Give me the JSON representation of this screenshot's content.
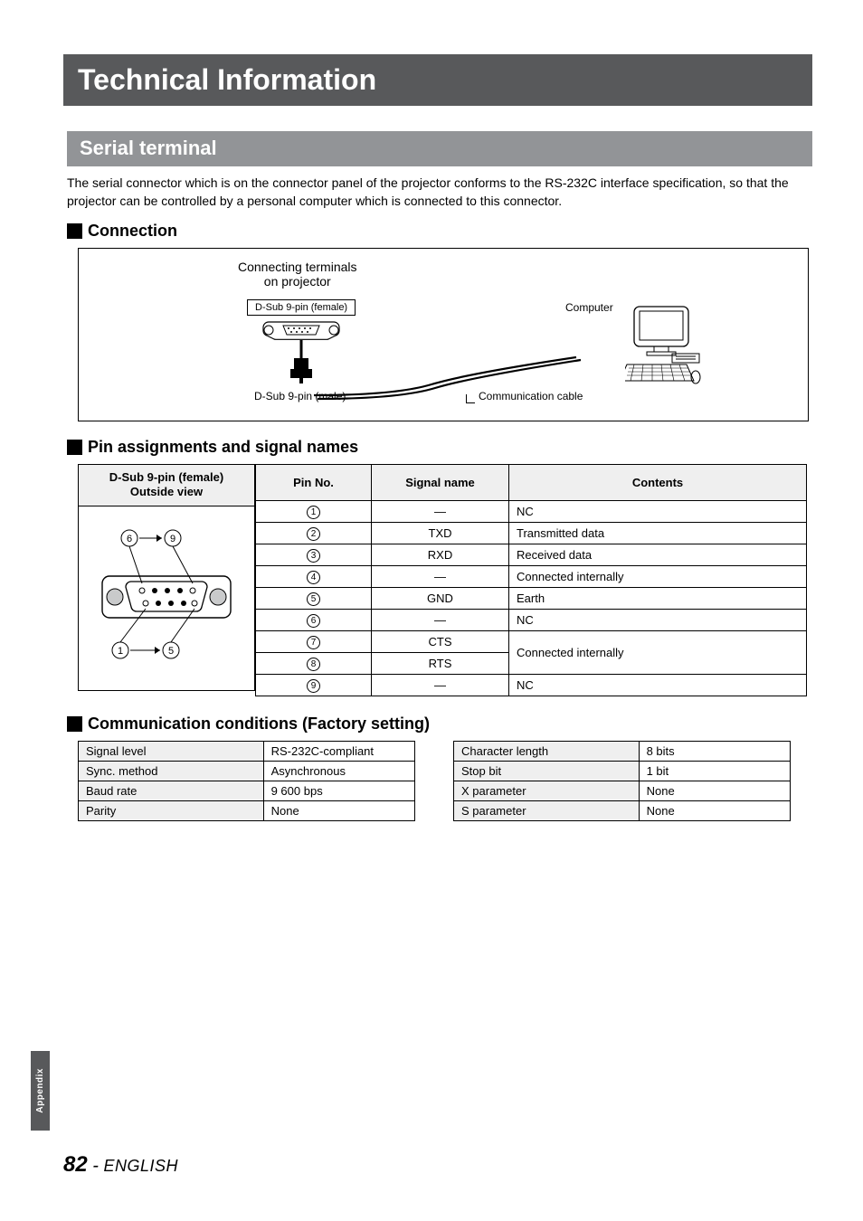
{
  "title": "Technical Information",
  "section": "Serial terminal",
  "intro": "The serial connector which is on the connector panel of the projector conforms to the RS-232C interface specification, so that the projector can be controlled by a personal computer which is connected to this connector.",
  "sub_connection": "Connection",
  "diagram": {
    "conn_terms_l1": "Connecting terminals",
    "conn_terms_l2": "on projector",
    "dsub_female": "D-Sub 9-pin (female)",
    "dsub_male": "D-Sub 9-pin (male)",
    "computer": "Computer",
    "comm_cable": "Communication cable"
  },
  "sub_pins": "Pin assignments and signal names",
  "pin_head_outside_l1": "D-Sub 9-pin (female)",
  "pin_head_outside_l2": "Outside view",
  "pin_head_pin": "Pin No.",
  "pin_head_signal": "Signal name",
  "pin_head_contents": "Contents",
  "pins": [
    {
      "n": "1",
      "sig": "—",
      "cnt": "NC"
    },
    {
      "n": "2",
      "sig": "TXD",
      "cnt": "Transmitted data"
    },
    {
      "n": "3",
      "sig": "RXD",
      "cnt": "Received data"
    },
    {
      "n": "4",
      "sig": "—",
      "cnt": "Connected internally"
    },
    {
      "n": "5",
      "sig": "GND",
      "cnt": "Earth"
    },
    {
      "n": "6",
      "sig": "—",
      "cnt": "NC"
    },
    {
      "n": "7",
      "sig": "CTS",
      "cnt": "Connected internally"
    },
    {
      "n": "8",
      "sig": "RTS",
      "cnt": ""
    },
    {
      "n": "9",
      "sig": "—",
      "cnt": "NC"
    }
  ],
  "sub_comm": "Communication conditions (Factory setting)",
  "comm_left": [
    {
      "k": "Signal level",
      "v": "RS-232C-compliant"
    },
    {
      "k": "Sync. method",
      "v": "Asynchronous"
    },
    {
      "k": "Baud rate",
      "v": "9 600 bps"
    },
    {
      "k": "Parity",
      "v": "None"
    }
  ],
  "comm_right": [
    {
      "k": "Character length",
      "v": "8 bits"
    },
    {
      "k": "Stop bit",
      "v": "1 bit"
    },
    {
      "k": "X parameter",
      "v": "None"
    },
    {
      "k": "S parameter",
      "v": "None"
    }
  ],
  "side_tab": "Appendix",
  "page_number": "82",
  "page_sep": " - ",
  "page_lang": "ENGLISH",
  "outside_arrow_69": {
    "a": "6",
    "b": "9"
  },
  "outside_arrow_15": {
    "a": "1",
    "b": "5"
  },
  "colors": {
    "dark_bar": "#58595b",
    "light_bar": "#929497",
    "cell_bg": "#efefef"
  }
}
